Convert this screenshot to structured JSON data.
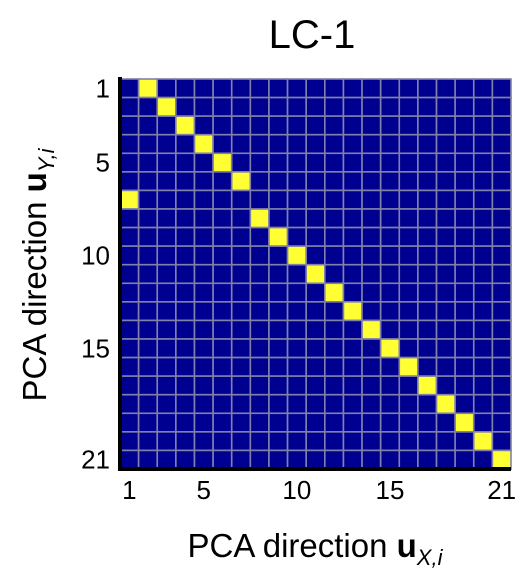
{
  "chart_data": {
    "type": "heatmap",
    "title": "LC-1",
    "xlabel": {
      "prefix": "PCA direction ",
      "var": "u",
      "subscript": "X,i"
    },
    "ylabel": {
      "prefix": "PCA direction ",
      "var": "u",
      "subscript": "Y,i"
    },
    "n": 21,
    "x_ticks": [
      1,
      5,
      10,
      15,
      21
    ],
    "y_ticks": [
      1,
      5,
      10,
      15,
      21
    ],
    "x_tick_labels": [
      "1",
      "5",
      "10",
      "15",
      "21"
    ],
    "y_tick_labels": [
      "1",
      "5",
      "10",
      "15",
      "21"
    ],
    "highlighted_cells": [
      {
        "x": 2,
        "y": 1
      },
      {
        "x": 3,
        "y": 2
      },
      {
        "x": 4,
        "y": 3
      },
      {
        "x": 5,
        "y": 4
      },
      {
        "x": 6,
        "y": 5
      },
      {
        "x": 7,
        "y": 6
      },
      {
        "x": 1,
        "y": 7
      },
      {
        "x": 8,
        "y": 8
      },
      {
        "x": 9,
        "y": 9
      },
      {
        "x": 10,
        "y": 10
      },
      {
        "x": 11,
        "y": 11
      },
      {
        "x": 12,
        "y": 12
      },
      {
        "x": 13,
        "y": 13
      },
      {
        "x": 14,
        "y": 14
      },
      {
        "x": 15,
        "y": 15
      },
      {
        "x": 16,
        "y": 16
      },
      {
        "x": 17,
        "y": 17
      },
      {
        "x": 18,
        "y": 18
      },
      {
        "x": 19,
        "y": 19
      },
      {
        "x": 20,
        "y": 20
      },
      {
        "x": 21,
        "y": 21
      }
    ],
    "grid": true,
    "colors": {
      "background_cell": "#000090",
      "highlight_cell": "#ffff33",
      "grid_line": "#8080a8",
      "axis_line": "#000000"
    }
  }
}
